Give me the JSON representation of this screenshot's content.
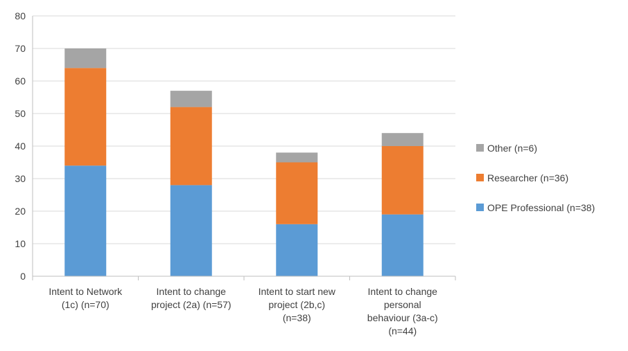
{
  "chart_data": {
    "type": "bar",
    "stacked": true,
    "categories": [
      [
        "Intent to Network",
        "(1c) (n=70)"
      ],
      [
        "Intent to change",
        "project (2a) (n=57)"
      ],
      [
        "Intent to start new",
        "project (2b,c)",
        "(n=38)"
      ],
      [
        "Intent to change",
        "personal",
        "behaviour (3a-c)",
        "(n=44)"
      ]
    ],
    "series": [
      {
        "name": "OPE Professional (n=38)",
        "color": "#5b9bd5",
        "values": [
          34,
          28,
          16,
          19
        ]
      },
      {
        "name": "Researcher (n=36)",
        "color": "#ed7d31",
        "values": [
          30,
          24,
          19,
          21
        ]
      },
      {
        "name": "Other (n=6)",
        "color": "#a5a5a5",
        "values": [
          6,
          5,
          3,
          4
        ]
      }
    ],
    "ylim": [
      0,
      80
    ],
    "yticks": [
      0,
      10,
      20,
      30,
      40,
      50,
      60,
      70,
      80
    ],
    "grid": true,
    "legend_position": "right"
  }
}
